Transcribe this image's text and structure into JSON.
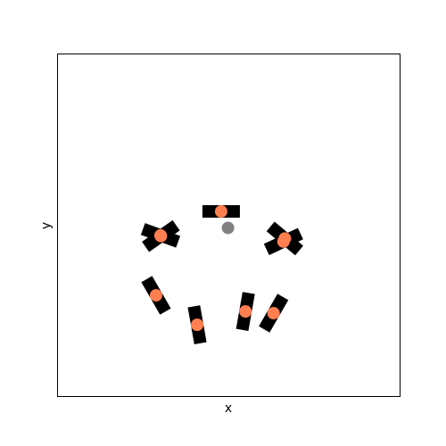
{
  "chart_data": {
    "type": "scatter",
    "title": "",
    "xlabel": "x",
    "ylabel": "y",
    "xlim": [
      0,
      1
    ],
    "ylim": [
      0,
      1
    ],
    "grid": false,
    "xticks": [],
    "yticks": [],
    "robot": {
      "x": 0.499,
      "y": 0.491,
      "color": "#808080"
    },
    "agents": [
      {
        "x": 0.479,
        "y": 0.539,
        "heading": 0,
        "color": "#ff7f50"
      },
      {
        "x": 0.303,
        "y": 0.467,
        "heading": -35,
        "color": "#ff7f50"
      },
      {
        "x": 0.302,
        "y": 0.469,
        "heading": 20,
        "color": "#ff7f50"
      },
      {
        "x": 0.661,
        "y": 0.451,
        "heading": -25,
        "color": "#ff7f50"
      },
      {
        "x": 0.665,
        "y": 0.46,
        "heading": 40,
        "color": "#ff7f50"
      },
      {
        "x": 0.289,
        "y": 0.294,
        "heading": 60,
        "color": "#ff7f50"
      },
      {
        "x": 0.409,
        "y": 0.208,
        "heading": 80,
        "color": "#ff7f50"
      },
      {
        "x": 0.55,
        "y": 0.247,
        "heading": -80,
        "color": "#ff7f50"
      },
      {
        "x": 0.632,
        "y": 0.242,
        "heading": -60,
        "color": "#ff7f50"
      }
    ],
    "bar_color": "#000000"
  }
}
